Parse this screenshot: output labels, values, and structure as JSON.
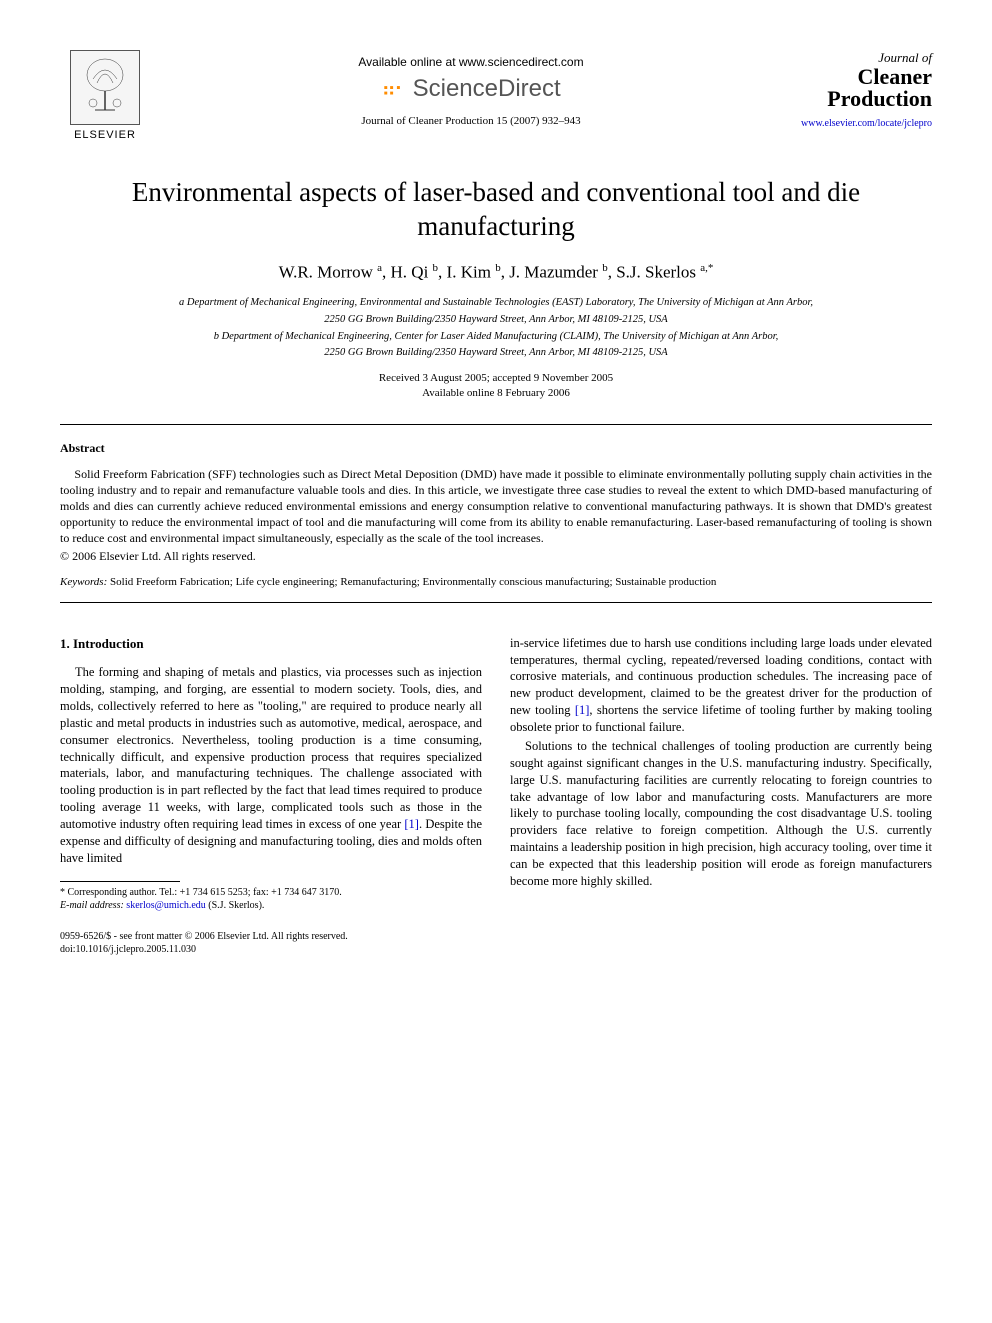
{
  "header": {
    "elsevier_label": "ELSEVIER",
    "available_online": "Available online at www.sciencedirect.com",
    "sd_brand": "ScienceDirect",
    "journal_citation": "Journal of Cleaner Production 15 (2007) 932–943",
    "journal_of": "Journal of",
    "journal_name_1": "Cleaner",
    "journal_name_2": "Production",
    "journal_url": "www.elsevier.com/locate/jclepro"
  },
  "title": "Environmental aspects of laser-based and conventional tool and die manufacturing",
  "authors_html": "W.R. Morrow <sup>a</sup>, H. Qi <sup>b</sup>, I. Kim <sup>b</sup>, J. Mazumder <sup>b</sup>, S.J. Skerlos <sup>a,*</sup>",
  "affiliations": {
    "a1": "a Department of Mechanical Engineering, Environmental and Sustainable Technologies (EAST) Laboratory, The University of Michigan at Ann Arbor,",
    "a2": "2250 GG Brown Building/2350 Hayward Street, Ann Arbor, MI 48109-2125, USA",
    "b1": "b Department of Mechanical Engineering, Center for Laser Aided Manufacturing (CLAIM), The University of Michigan at Ann Arbor,",
    "b2": "2250 GG Brown Building/2350 Hayward Street, Ann Arbor, MI 48109-2125, USA"
  },
  "dates": {
    "received": "Received 3 August 2005; accepted 9 November 2005",
    "online": "Available online 8 February 2006"
  },
  "abstract": {
    "heading": "Abstract",
    "body": "Solid Freeform Fabrication (SFF) technologies such as Direct Metal Deposition (DMD) have made it possible to eliminate environmentally polluting supply chain activities in the tooling industry and to repair and remanufacture valuable tools and dies. In this article, we investigate three case studies to reveal the extent to which DMD-based manufacturing of molds and dies can currently achieve reduced environmental emissions and energy consumption relative to conventional manufacturing pathways. It is shown that DMD's greatest opportunity to reduce the environmental impact of tool and die manufacturing will come from its ability to enable remanufacturing. Laser-based remanufacturing of tooling is shown to reduce cost and environmental impact simultaneously, especially as the scale of the tool increases.",
    "copyright": "© 2006 Elsevier Ltd. All rights reserved."
  },
  "keywords": {
    "label": "Keywords:",
    "text": " Solid Freeform Fabrication; Life cycle engineering; Remanufacturing; Environmentally conscious manufacturing; Sustainable production"
  },
  "body": {
    "section_num": "1. Introduction",
    "p1a": "The forming and shaping of metals and plastics, via processes such as injection molding, stamping, and forging, are essential to modern society. Tools, dies, and molds, collectively referred to here as \"tooling,\" are required to produce nearly all plastic and metal products in industries such as automotive, medical, aerospace, and consumer electronics. Nevertheless, tooling production is a time consuming, technically difficult, and expensive production process that requires specialized materials, labor, and manufacturing techniques. The challenge associated with tooling production is in part reflected by the fact that lead times required to produce tooling average 11 weeks, with large, complicated tools such as those in the automotive industry often requiring lead times in excess of one year ",
    "ref1": "[1]",
    "p1b": ". Despite the expense and difficulty of designing and manufacturing tooling, dies and molds often have limited",
    "p1c": "in-service lifetimes due to harsh use conditions including large loads under elevated temperatures, thermal cycling, repeated/reversed loading conditions, contact with corrosive materials, and continuous production schedules. The increasing pace of new product development, claimed to be the greatest driver for the production of new tooling ",
    "ref1b": "[1]",
    "p1d": ", shortens the service lifetime of tooling further by making tooling obsolete prior to functional failure.",
    "p2": "Solutions to the technical challenges of tooling production are currently being sought against significant changes in the U.S. manufacturing industry. Specifically, large U.S. manufacturing facilities are currently relocating to foreign countries to take advantage of low labor and manufacturing costs. Manufacturers are more likely to purchase tooling locally, compounding the cost disadvantage U.S. tooling providers face relative to foreign competition. Although the U.S. currently maintains a leadership position in high precision, high accuracy tooling, over time it can be expected that this leadership position will erode as foreign manufacturers become more highly skilled."
  },
  "footnote": {
    "corr": "* Corresponding author. Tel.: +1 734 615 5253; fax: +1 734 647 3170.",
    "email_label": "E-mail address:",
    "email": "skerlos@umich.edu",
    "email_suffix": " (S.J. Skerlos)."
  },
  "footer": {
    "front_matter": "0959-6526/$ - see front matter © 2006 Elsevier Ltd. All rights reserved.",
    "doi": "doi:10.1016/j.jclepro.2005.11.030"
  },
  "colors": {
    "link": "#0000cc",
    "sd_orange": "#ff8c00",
    "text": "#000000",
    "bg": "#ffffff"
  }
}
